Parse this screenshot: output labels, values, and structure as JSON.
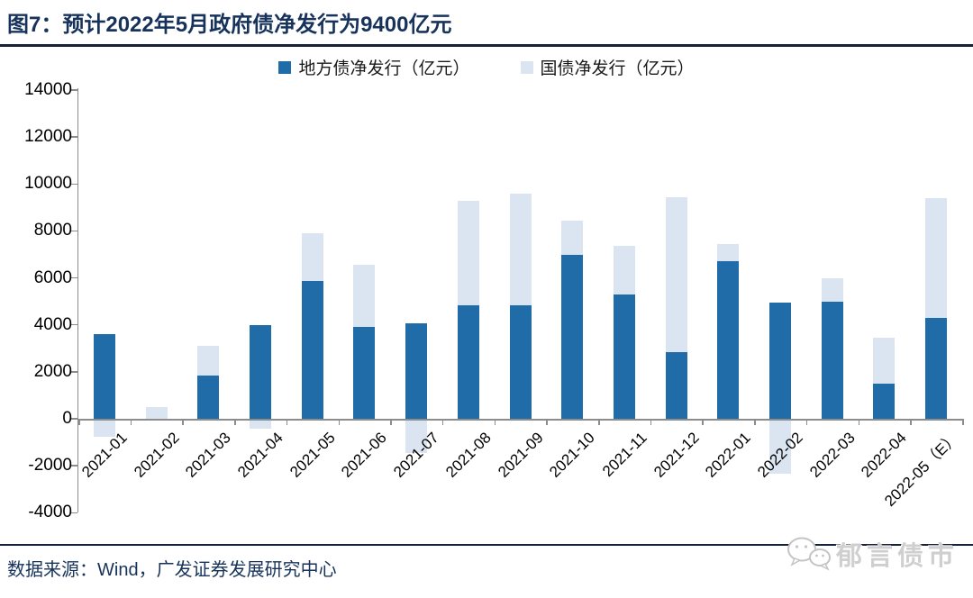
{
  "header": {
    "title": "图7：预计2022年5月政府债净发行为9400亿元"
  },
  "chart_data": {
    "type": "bar",
    "stacked": true,
    "title": "预计2022年5月政府债净发行为9400亿元",
    "xlabel": "",
    "ylabel": "",
    "categories": [
      "2021-01",
      "2021-02",
      "2021-03",
      "2021-04",
      "2021-05",
      "2021-06",
      "2021-07",
      "2021-08",
      "2021-09",
      "2021-10",
      "2021-11",
      "2021-12",
      "2022-01",
      "2022-02",
      "2022-03",
      "2022-04",
      "2022-05（E）"
    ],
    "series": [
      {
        "name": "地方债净发行（亿元）",
        "color": "#1F6CA8",
        "values": [
          3600,
          0,
          1850,
          4000,
          5850,
          3900,
          4050,
          4850,
          4850,
          7000,
          5300,
          2850,
          6700,
          4950,
          5000,
          1500,
          4300
        ]
      },
      {
        "name": "国债净发行（亿元）",
        "color": "#DBE5F1",
        "values": [
          -700,
          500,
          1250,
          -350,
          2050,
          2650,
          -1400,
          4450,
          4750,
          1450,
          2050,
          6600,
          750,
          -2300,
          1000,
          1950,
          5100
        ]
      }
    ],
    "ylim": [
      -4000,
      14000
    ],
    "y_ticks": [
      14000,
      12000,
      10000,
      8000,
      6000,
      4000,
      2000,
      0,
      -2000,
      -4000
    ],
    "grid": false,
    "legend_position": "top-center"
  },
  "footer": {
    "source": "数据来源：Wind，广发证券发展研究中心",
    "watermark": "郁言债市"
  },
  "icons": {
    "watermark_icon": "wechat-chat-bubbles"
  },
  "colors": {
    "title_text": "#17335C",
    "divider": "#152238",
    "axis": "#8C8C8C",
    "local_bar": "#1F6CA8",
    "treasury_bar": "#DBE5F1"
  }
}
